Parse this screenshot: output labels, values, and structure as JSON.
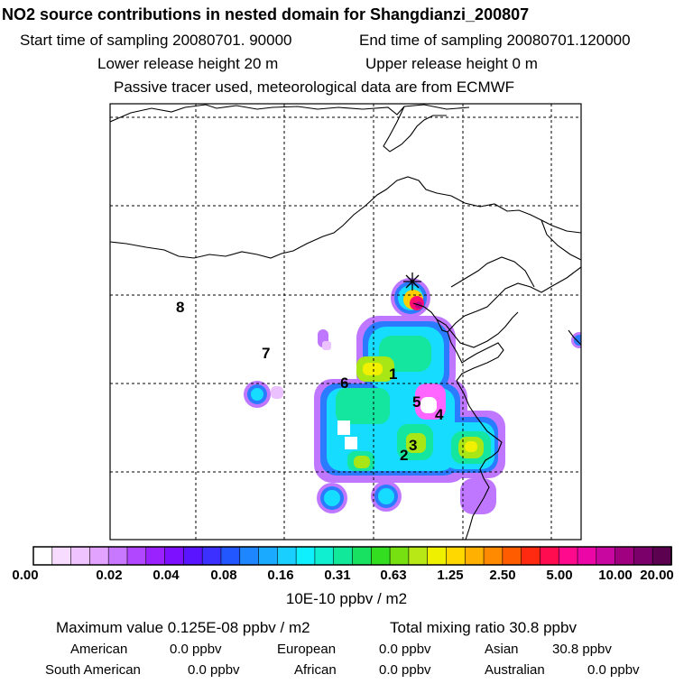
{
  "header": {
    "title": "NO2 source contributions in nested domain for Shangdianzi_200807",
    "start_label": "Start time of sampling 20080701. 90000",
    "end_label": "End time of sampling 20080701.120000",
    "lower_label": "Lower release height   20 m",
    "upper_label": "Upper release height    0 m",
    "note": "Passive tracer used, meteorological data are from ECMWF"
  },
  "map": {
    "region_labels": [
      "1",
      "2",
      "3",
      "4",
      "5",
      "6",
      "7",
      "8"
    ],
    "receptor_marker": "asterisk-station-icon"
  },
  "colorbar": {
    "colors": [
      "#ffffff",
      "#f8dcff",
      "#efc3ff",
      "#e2a3ff",
      "#c778ff",
      "#b148ff",
      "#9a22ff",
      "#7c10ff",
      "#5a14ff",
      "#3b30ff",
      "#2257ff",
      "#1e86ff",
      "#1aaaff",
      "#18cfff",
      "#0ff0ff",
      "#10f0d0",
      "#12e89a",
      "#18e060",
      "#33dd20",
      "#77e010",
      "#b8e815",
      "#eef000",
      "#ffd800",
      "#ffb000",
      "#ff8a00",
      "#ff5c00",
      "#ff2a10",
      "#ff0c50",
      "#ff0a8c",
      "#ec06a8",
      "#c806a0",
      "#a0007f",
      "#7c006a",
      "#5c0050"
    ],
    "tick_labels": [
      "0.00",
      "0.02",
      "0.04",
      "0.08",
      "0.16",
      "0.31",
      "0.63",
      "1.25",
      "2.50",
      "5.00",
      "10.00",
      "20.00"
    ],
    "unit": "10E-10 ppbv / m2"
  },
  "summary": {
    "max_value": "Maximum value  0.125E-08 ppbv / m2",
    "total": "Total mixing ratio      30.8 ppbv",
    "american": "American",
    "american_val": "0.0 ppbv",
    "european": "European",
    "european_val": "0.0 ppbv",
    "asian": "Asian",
    "asian_val": "30.8 ppbv",
    "south_american": "South American",
    "south_american_val": "0.0 ppbv",
    "african": "African",
    "african_val": "0.0 ppbv",
    "australian": "Australian",
    "australian_val": "0.0 ppbv"
  }
}
